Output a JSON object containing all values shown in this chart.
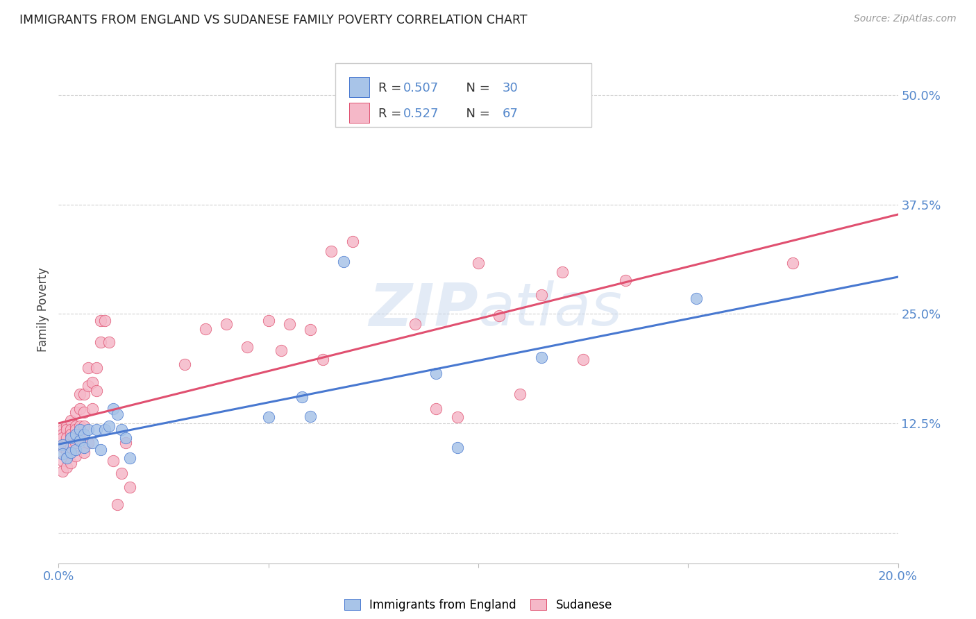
{
  "title": "IMMIGRANTS FROM ENGLAND VS SUDANESE FAMILY POVERTY CORRELATION CHART",
  "source": "Source: ZipAtlas.com",
  "ylabel": "Family Poverty",
  "legend_blue_R": "0.507",
  "legend_blue_N": "30",
  "legend_pink_R": "0.527",
  "legend_pink_N": "67",
  "legend_label_blue": "Immigrants from England",
  "legend_label_pink": "Sudanese",
  "blue_color": "#a8c4e8",
  "pink_color": "#f5b8c8",
  "blue_line_color": "#4878d0",
  "pink_line_color": "#e05070",
  "watermark_color": "#c8d8ee",
  "background_color": "#ffffff",
  "grid_color": "#cccccc",
  "tick_color": "#5588cc",
  "xmin": 0.0,
  "xmax": 0.2,
  "ymin": -0.035,
  "ymax": 0.545,
  "ytick_values": [
    0.0,
    0.125,
    0.25,
    0.375,
    0.5
  ],
  "ytick_labels": [
    "",
    "12.5%",
    "25.0%",
    "37.5%",
    "50.0%"
  ],
  "xtick_values": [
    0.0,
    0.05,
    0.1,
    0.15,
    0.2
  ],
  "xtick_labels": [
    "0.0%",
    "",
    "",
    "",
    "20.0%"
  ],
  "blue_x": [
    0.001,
    0.001,
    0.002,
    0.003,
    0.003,
    0.004,
    0.004,
    0.005,
    0.005,
    0.006,
    0.006,
    0.007,
    0.008,
    0.009,
    0.01,
    0.011,
    0.012,
    0.013,
    0.014,
    0.015,
    0.016,
    0.017,
    0.05,
    0.058,
    0.06,
    0.068,
    0.09,
    0.095,
    0.115,
    0.152
  ],
  "blue_y": [
    0.1,
    0.09,
    0.085,
    0.092,
    0.108,
    0.095,
    0.112,
    0.118,
    0.105,
    0.097,
    0.112,
    0.118,
    0.103,
    0.118,
    0.095,
    0.118,
    0.122,
    0.142,
    0.135,
    0.118,
    0.108,
    0.085,
    0.132,
    0.155,
    0.133,
    0.31,
    0.182,
    0.097,
    0.2,
    0.268
  ],
  "pink_x": [
    0.001,
    0.001,
    0.001,
    0.001,
    0.001,
    0.001,
    0.002,
    0.002,
    0.002,
    0.002,
    0.002,
    0.003,
    0.003,
    0.003,
    0.003,
    0.003,
    0.004,
    0.004,
    0.004,
    0.004,
    0.004,
    0.005,
    0.005,
    0.005,
    0.005,
    0.006,
    0.006,
    0.006,
    0.006,
    0.007,
    0.007,
    0.007,
    0.008,
    0.008,
    0.009,
    0.009,
    0.01,
    0.01,
    0.011,
    0.012,
    0.013,
    0.014,
    0.015,
    0.016,
    0.017,
    0.03,
    0.035,
    0.04,
    0.045,
    0.05,
    0.053,
    0.055,
    0.06,
    0.063,
    0.065,
    0.07,
    0.085,
    0.09,
    0.095,
    0.1,
    0.105,
    0.11,
    0.115,
    0.12,
    0.125,
    0.135,
    0.175
  ],
  "pink_y": [
    0.118,
    0.112,
    0.108,
    0.098,
    0.082,
    0.07,
    0.122,
    0.118,
    0.108,
    0.093,
    0.075,
    0.128,
    0.118,
    0.112,
    0.098,
    0.08,
    0.138,
    0.122,
    0.118,
    0.103,
    0.088,
    0.158,
    0.142,
    0.122,
    0.108,
    0.158,
    0.138,
    0.122,
    0.092,
    0.188,
    0.168,
    0.103,
    0.172,
    0.142,
    0.188,
    0.162,
    0.218,
    0.242,
    0.242,
    0.218,
    0.082,
    0.032,
    0.068,
    0.103,
    0.052,
    0.192,
    0.233,
    0.238,
    0.212,
    0.242,
    0.208,
    0.238,
    0.232,
    0.198,
    0.322,
    0.333,
    0.238,
    0.142,
    0.132,
    0.308,
    0.248,
    0.158,
    0.272,
    0.298,
    0.198,
    0.288,
    0.308
  ]
}
